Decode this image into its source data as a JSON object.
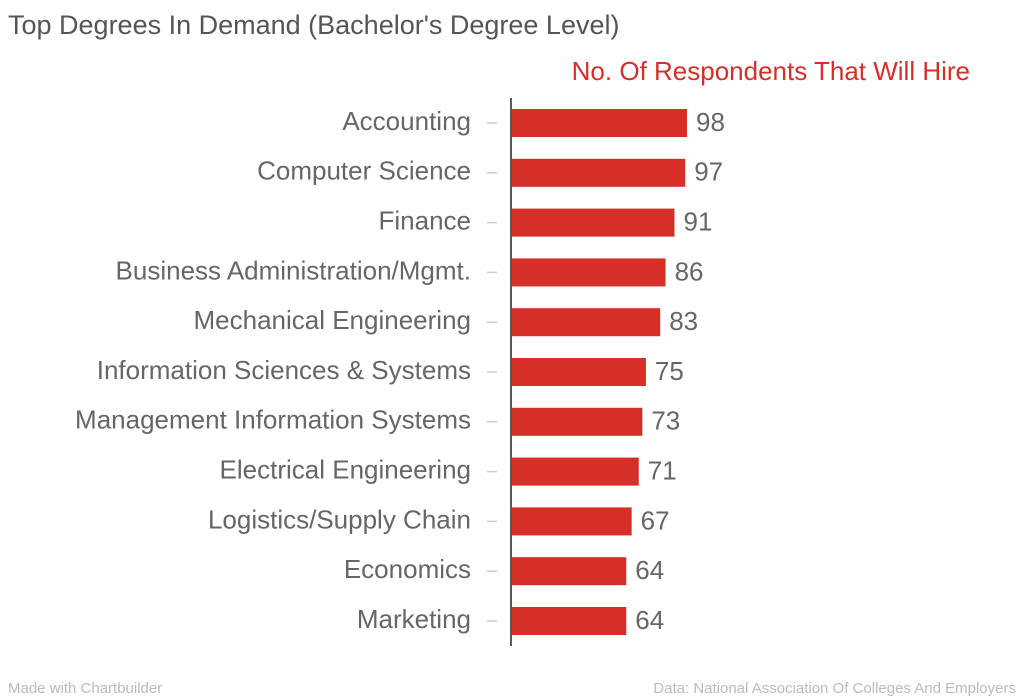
{
  "chart_data": {
    "type": "hbar",
    "title": "Top Degrees In Demand (Bachelor's Degree Level)",
    "categories": [
      "Accounting",
      "Computer Science",
      "Finance",
      "Business Administration/Mgmt.",
      "Mechanical Engineering",
      "Information Sciences & Systems",
      "Management Information Systems",
      "Electrical Engineering",
      "Logistics/Supply Chain",
      "Economics",
      "Marketing"
    ],
    "series": [
      {
        "name": "No. Of Respondents That Will Hire",
        "color": "#d62f27",
        "values": [
          98,
          97,
          91,
          86,
          83,
          75,
          73,
          71,
          67,
          64,
          64
        ]
      }
    ],
    "credit": "Made with Chartbuilder",
    "source": "Data: National Association Of Colleges And Employers"
  }
}
